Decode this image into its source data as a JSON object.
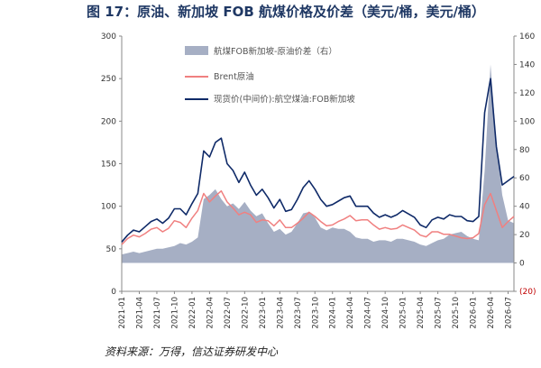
{
  "title": "图 17：原油、新加坡 FOB 航煤价格及价差（美元/桶，美元/桶）",
  "source": "资料来源：万得，信达证券研发中心",
  "chart_data": {
    "type": "line",
    "title": "图 17：原油、新加坡 FOB 航煤价格及价差（美元/桶，美元/桶）",
    "left_axis": {
      "range": [
        0,
        300
      ],
      "ticks": [
        "0",
        "50",
        "100",
        "150",
        "200",
        "250",
        "300"
      ]
    },
    "right_axis": {
      "range": [
        -20,
        160
      ],
      "ticks": [
        "(20)",
        "0",
        "20",
        "40",
        "60",
        "80",
        "100",
        "120",
        "140",
        "160"
      ]
    },
    "x_ticks": [
      "2021-01",
      "2021-04",
      "2021-07",
      "2021-10",
      "2022-01",
      "2022-04",
      "2022-07",
      "2022-10",
      "2023-01",
      "2023-04",
      "2023-07",
      "2023-10",
      "2024-01",
      "2024-04",
      "2024-07",
      "2024-10",
      "2025-01",
      "2025-04",
      "2025-07",
      "2025-10",
      "2026-01",
      "2026-04",
      "2026-07"
    ],
    "grid": false,
    "legend_position": "top-left",
    "x": [
      "2021-01",
      "2021-02",
      "2021-03",
      "2021-04",
      "2021-05",
      "2021-06",
      "2021-07",
      "2021-08",
      "2021-09",
      "2021-10",
      "2021-11",
      "2021-12",
      "2022-01",
      "2022-02",
      "2022-03",
      "2022-04",
      "2022-05",
      "2022-06",
      "2022-07",
      "2022-08",
      "2022-09",
      "2022-10",
      "2022-11",
      "2022-12",
      "2023-01",
      "2023-02",
      "2023-03",
      "2023-04",
      "2023-05",
      "2023-06",
      "2023-07",
      "2023-08",
      "2023-09",
      "2023-10",
      "2023-11",
      "2023-12",
      "2024-01",
      "2024-02",
      "2024-03",
      "2024-04",
      "2024-05",
      "2024-06",
      "2024-07",
      "2024-08",
      "2024-09",
      "2024-10",
      "2024-11",
      "2024-12",
      "2025-01",
      "2025-02",
      "2025-03",
      "2025-04",
      "2025-05",
      "2025-06",
      "2025-07",
      "2025-08",
      "2025-09",
      "2025-10",
      "2025-11",
      "2025-12",
      "2026-01",
      "2026-02",
      "2026-03",
      "2026-04",
      "2026-05",
      "2026-06",
      "2026-07",
      "2026-08"
    ],
    "series": [
      {
        "name": "航煤FOB新加坡-原油价差（右）",
        "type": "area",
        "axis": "right",
        "color": "#a6afc4",
        "values": [
          6,
          7,
          8,
          7,
          8,
          9,
          10,
          10,
          11,
          12,
          14,
          13,
          15,
          18,
          45,
          48,
          52,
          45,
          40,
          42,
          38,
          43,
          37,
          33,
          35,
          28,
          22,
          24,
          20,
          22,
          28,
          35,
          36,
          32,
          25,
          23,
          25,
          24,
          24,
          22,
          18,
          17,
          17,
          15,
          16,
          16,
          15,
          17,
          17,
          16,
          15,
          13,
          12,
          14,
          16,
          17,
          20,
          21,
          22,
          19,
          17,
          16,
          65,
          140,
          85,
          48,
          30,
          28
        ]
      },
      {
        "name": "Brent原油",
        "type": "line",
        "axis": "left",
        "color": "#f08080",
        "values": [
          55,
          62,
          66,
          64,
          68,
          73,
          75,
          70,
          74,
          83,
          81,
          75,
          86,
          95,
          115,
          105,
          112,
          118,
          105,
          98,
          90,
          93,
          90,
          81,
          84,
          83,
          77,
          84,
          75,
          75,
          80,
          86,
          93,
          88,
          82,
          77,
          78,
          82,
          85,
          89,
          83,
          84,
          84,
          78,
          73,
          75,
          73,
          74,
          78,
          75,
          72,
          66,
          64,
          70,
          70,
          67,
          67,
          65,
          63,
          62,
          63,
          68,
          102,
          115,
          95,
          75,
          82,
          88
        ]
      },
      {
        "name": "现货价(中间价):航空煤油:FOB新加坡",
        "type": "line",
        "axis": "left",
        "color": "#0f2a68",
        "values": [
          58,
          66,
          72,
          70,
          76,
          82,
          85,
          80,
          86,
          97,
          97,
          90,
          103,
          115,
          165,
          158,
          175,
          180,
          150,
          142,
          128,
          140,
          125,
          113,
          120,
          110,
          98,
          108,
          94,
          96,
          108,
          122,
          130,
          120,
          108,
          100,
          102,
          106,
          110,
          112,
          100,
          100,
          100,
          92,
          87,
          90,
          87,
          90,
          95,
          91,
          87,
          78,
          75,
          84,
          87,
          85,
          90,
          88,
          88,
          83,
          82,
          88,
          210,
          250,
          170,
          125,
          130,
          135
        ]
      }
    ]
  }
}
